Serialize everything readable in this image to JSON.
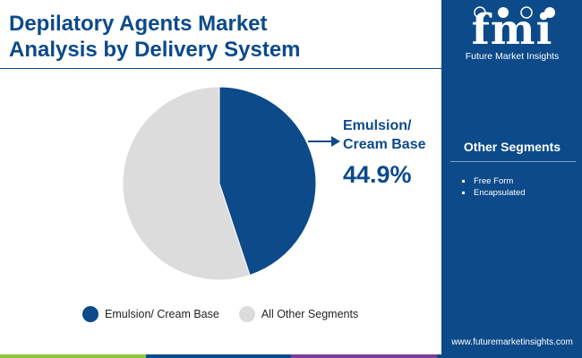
{
  "header": {
    "title_line1": "Depilatory Agents Market",
    "title_line2": "Analysis by Delivery System"
  },
  "brand": {
    "letters": "fmi",
    "name": "Future Market Insights",
    "website": "www.futuremarketinsights.com"
  },
  "sidebar": {
    "heading": "Other Segments",
    "items": [
      "Free Form",
      "Encapsulated"
    ]
  },
  "callout": {
    "label_line1": "Emulsion/",
    "label_line2": "Cream Base",
    "value": "44.9%"
  },
  "chart_data": {
    "type": "pie",
    "title": "Depilatory Agents Market Analysis by Delivery System",
    "start_angle_deg": 0,
    "direction": "clockwise",
    "slices": [
      {
        "label": "Emulsion/ Cream Base",
        "value": 44.9,
        "color": "#0c4a8a"
      },
      {
        "label": "All Other Segments",
        "value": 55.1,
        "color": "#dcdcdc"
      }
    ],
    "legend_position": "bottom"
  },
  "colors": {
    "primary": "#0c4a8a",
    "secondary": "#dcdcdc",
    "bottom_bar": [
      "#8dc63f",
      "#0c4a8a",
      "#7b3f98",
      "#0c4a8a"
    ]
  }
}
